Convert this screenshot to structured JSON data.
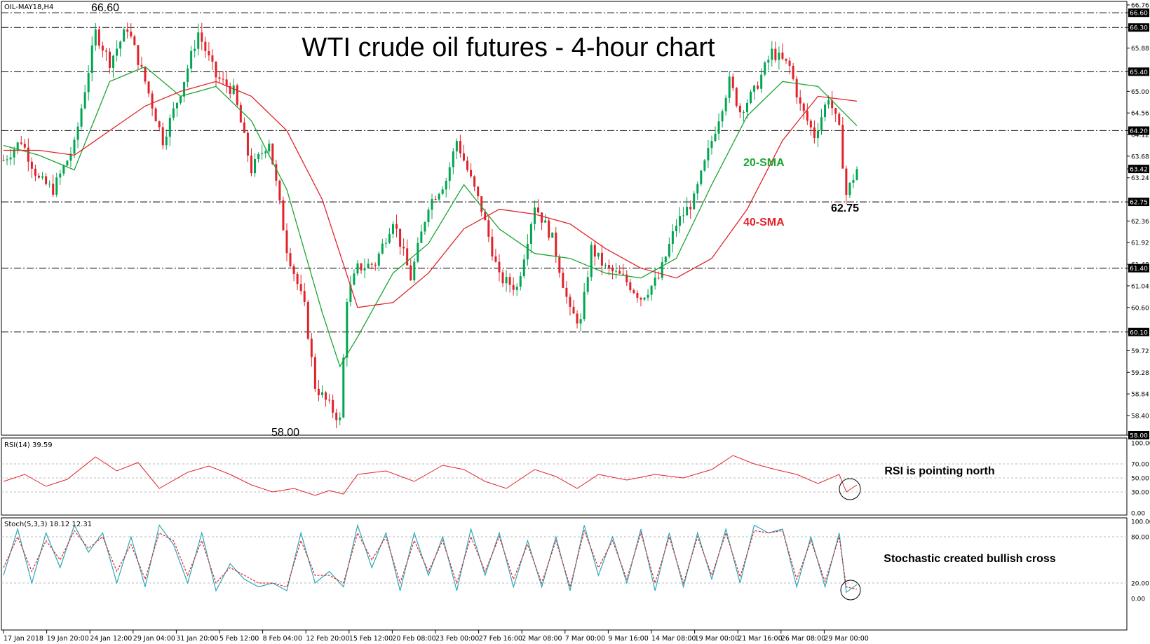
{
  "chart": {
    "symbol": "OIL-MAY18,H4",
    "title": "WTI crude oil futures - 4-hour chart",
    "colors": {
      "bull": "#00a651",
      "bear": "#e2222a",
      "sma20": "#1aa531",
      "sma40": "#e2222a",
      "rsi": "#e2222a",
      "stoch_main": "#29a8b8",
      "stoch_signal": "#e2222a",
      "level": "#000000"
    },
    "annotations": {
      "high": "66.60",
      "low": "58.00",
      "recent_low": "62.75",
      "sma20_label": "20-SMA",
      "sma40_label": "40-SMA",
      "rsi_note": "RSI is pointing north",
      "stoch_note": "Stochastic created bullish cross"
    },
    "indicators": {
      "rsi": {
        "header": "RSI(14) 39.59",
        "scale": [
          "100.00",
          "70.00",
          "50.00",
          "30.00",
          "0.00"
        ]
      },
      "stochastic": {
        "header": "Stoch(5,3,3) 18.12 12.31",
        "scale": [
          "100.00",
          "80.00",
          "20.00",
          "0.00"
        ]
      }
    }
  },
  "chart_data": [
    {
      "type": "candlestick",
      "title": "WTI crude oil futures - 4-hour chart",
      "ylim": [
        58.0,
        66.76
      ],
      "y_ticks": [
        "66.76",
        "66.60",
        "66.30",
        "65.88",
        "65.40",
        "65.00",
        "64.56",
        "64.20",
        "64.12",
        "63.68",
        "63.42",
        "63.24",
        "62.75",
        "62.36",
        "61.92",
        "61.48",
        "61.40",
        "61.04",
        "60.60",
        "60.10",
        "59.72",
        "59.28",
        "58.84",
        "58.40",
        "58.00"
      ],
      "highlighted_ticks": [
        "66.60",
        "66.30",
        "65.40",
        "64.20",
        "63.42",
        "62.75",
        "61.40",
        "60.10",
        "58.00"
      ],
      "levels": [
        66.6,
        66.3,
        65.4,
        64.2,
        62.75,
        61.4,
        60.1
      ],
      "x_labels": [
        "17 Jan 2018",
        "19 Jan 20:00",
        "24 Jan 12:00",
        "29 Jan 04:00",
        "31 Jan 20:00",
        "5 Feb 12:00",
        "8 Feb 04:00",
        "12 Feb 20:00",
        "15 Feb 12:00",
        "20 Feb 08:00",
        "23 Feb 00:00",
        "27 Feb 16:00",
        "2 Mar 08:00",
        "7 Mar 00:00",
        "9 Mar 16:00",
        "14 Mar 08:00",
        "19 Mar 00:00",
        "21 Mar 16:00",
        "26 Mar 08:00",
        "29 Mar 00:00"
      ],
      "close_path": [
        [
          0,
          63.6
        ],
        [
          5,
          64.0
        ],
        [
          10,
          63.2
        ],
        [
          14,
          63.0
        ],
        [
          20,
          63.9
        ],
        [
          26,
          66.2
        ],
        [
          30,
          65.6
        ],
        [
          35,
          66.3
        ],
        [
          40,
          65.2
        ],
        [
          45,
          64.0
        ],
        [
          50,
          65.0
        ],
        [
          55,
          66.2
        ],
        [
          60,
          65.3
        ],
        [
          65,
          65.0
        ],
        [
          70,
          63.4
        ],
        [
          75,
          64.0
        ],
        [
          80,
          61.8
        ],
        [
          85,
          60.6
        ],
        [
          88,
          59.0
        ],
        [
          92,
          58.6
        ],
        [
          95,
          58.3
        ],
        [
          97,
          60.8
        ],
        [
          100,
          61.4
        ],
        [
          105,
          61.5
        ],
        [
          110,
          62.4
        ],
        [
          115,
          61.2
        ],
        [
          120,
          62.7
        ],
        [
          125,
          63.2
        ],
        [
          128,
          64.0
        ],
        [
          132,
          63.2
        ],
        [
          135,
          62.6
        ],
        [
          140,
          61.2
        ],
        [
          145,
          61.0
        ],
        [
          150,
          62.7
        ],
        [
          155,
          62.0
        ],
        [
          160,
          60.5
        ],
        [
          163,
          60.3
        ],
        [
          166,
          61.8
        ],
        [
          170,
          61.4
        ],
        [
          175,
          61.2
        ],
        [
          180,
          60.8
        ],
        [
          185,
          61.2
        ],
        [
          190,
          62.3
        ],
        [
          195,
          62.8
        ],
        [
          200,
          64.0
        ],
        [
          205,
          65.2
        ],
        [
          208,
          64.6
        ],
        [
          212,
          65.0
        ],
        [
          217,
          65.8
        ],
        [
          222,
          65.5
        ],
        [
          225,
          64.7
        ],
        [
          229,
          64.1
        ],
        [
          233,
          64.9
        ],
        [
          236,
          64.2
        ],
        [
          238,
          62.9
        ],
        [
          241,
          63.42
        ]
      ],
      "series": [
        {
          "name": "20-SMA",
          "x": [
            0,
            10,
            20,
            30,
            40,
            50,
            60,
            70,
            80,
            90,
            95,
            100,
            110,
            120,
            130,
            140,
            150,
            160,
            170,
            180,
            190,
            200,
            210,
            220,
            230,
            241
          ],
          "values": [
            63.9,
            63.7,
            63.4,
            65.2,
            65.5,
            64.9,
            65.1,
            64.4,
            63.0,
            60.5,
            59.4,
            60.0,
            61.3,
            61.9,
            63.1,
            62.2,
            61.7,
            61.6,
            61.3,
            61.2,
            61.6,
            63.1,
            64.5,
            65.2,
            65.1,
            64.3
          ]
        },
        {
          "name": "40-SMA",
          "x": [
            0,
            10,
            20,
            30,
            40,
            50,
            60,
            70,
            80,
            90,
            100,
            110,
            120,
            130,
            140,
            150,
            160,
            170,
            180,
            190,
            200,
            210,
            220,
            230,
            241
          ],
          "values": [
            63.8,
            63.8,
            63.7,
            64.2,
            64.7,
            65.0,
            65.2,
            64.9,
            64.2,
            62.8,
            60.6,
            60.7,
            61.3,
            62.2,
            62.6,
            62.5,
            62.3,
            61.8,
            61.4,
            61.2,
            61.6,
            62.6,
            64.0,
            64.9,
            64.8
          ]
        }
      ]
    },
    {
      "type": "line",
      "title": "RSI(14) 39.59",
      "ylim": [
        0,
        100
      ],
      "y_ticks": [
        100,
        70,
        50,
        30,
        0
      ],
      "series": [
        {
          "name": "RSI(14)",
          "x": [
            0,
            6,
            12,
            18,
            26,
            32,
            38,
            44,
            52,
            58,
            64,
            70,
            76,
            82,
            88,
            92,
            96,
            100,
            108,
            116,
            124,
            130,
            136,
            142,
            150,
            156,
            162,
            168,
            176,
            184,
            192,
            200,
            206,
            212,
            218,
            224,
            230,
            236,
            238,
            241
          ],
          "values": [
            45,
            55,
            38,
            48,
            80,
            60,
            72,
            35,
            58,
            67,
            55,
            40,
            30,
            35,
            25,
            32,
            27,
            55,
            60,
            45,
            68,
            62,
            45,
            35,
            62,
            52,
            35,
            55,
            47,
            55,
            50,
            62,
            82,
            70,
            62,
            55,
            42,
            55,
            30,
            40
          ]
        }
      ]
    },
    {
      "type": "line",
      "title": "Stoch(5,3,3) 18.12 12.31",
      "ylim": [
        0,
        100
      ],
      "y_ticks": [
        100,
        80,
        20,
        0
      ],
      "series": [
        {
          "name": "%K",
          "x": [
            0,
            4,
            8,
            12,
            16,
            20,
            24,
            28,
            32,
            36,
            40,
            44,
            48,
            52,
            56,
            60,
            64,
            68,
            72,
            76,
            80,
            84,
            88,
            92,
            96,
            100,
            104,
            108,
            112,
            116,
            120,
            124,
            128,
            132,
            136,
            140,
            144,
            148,
            152,
            156,
            160,
            164,
            168,
            172,
            176,
            180,
            184,
            188,
            192,
            196,
            200,
            204,
            208,
            212,
            216,
            220,
            224,
            228,
            232,
            236,
            238,
            241
          ],
          "values": [
            30,
            90,
            20,
            85,
            40,
            95,
            60,
            85,
            20,
            80,
            15,
            95,
            70,
            20,
            85,
            10,
            45,
            25,
            15,
            20,
            10,
            85,
            20,
            35,
            15,
            95,
            40,
            85,
            10,
            85,
            30,
            80,
            10,
            90,
            30,
            85,
            15,
            75,
            15,
            80,
            10,
            95,
            30,
            80,
            20,
            90,
            10,
            85,
            15,
            85,
            25,
            90,
            20,
            95,
            85,
            90,
            15,
            80,
            15,
            85,
            8,
            18
          ]
        },
        {
          "name": "%D",
          "x": [
            0,
            4,
            8,
            12,
            16,
            20,
            24,
            28,
            32,
            36,
            40,
            44,
            48,
            52,
            56,
            60,
            64,
            68,
            72,
            76,
            80,
            84,
            88,
            92,
            96,
            100,
            104,
            108,
            112,
            116,
            120,
            124,
            128,
            132,
            136,
            140,
            144,
            148,
            152,
            156,
            160,
            164,
            168,
            172,
            176,
            180,
            184,
            188,
            192,
            196,
            200,
            204,
            208,
            212,
            216,
            220,
            224,
            228,
            232,
            236,
            238,
            241
          ],
          "values": [
            40,
            80,
            35,
            75,
            50,
            88,
            65,
            80,
            35,
            70,
            25,
            85,
            75,
            30,
            75,
            20,
            40,
            30,
            20,
            20,
            15,
            75,
            30,
            30,
            20,
            85,
            50,
            80,
            20,
            75,
            35,
            75,
            20,
            80,
            35,
            80,
            25,
            70,
            20,
            75,
            15,
            88,
            40,
            75,
            25,
            85,
            20,
            80,
            20,
            80,
            30,
            85,
            28,
            88,
            85,
            88,
            25,
            75,
            22,
            80,
            15,
            12
          ]
        }
      ]
    }
  ]
}
